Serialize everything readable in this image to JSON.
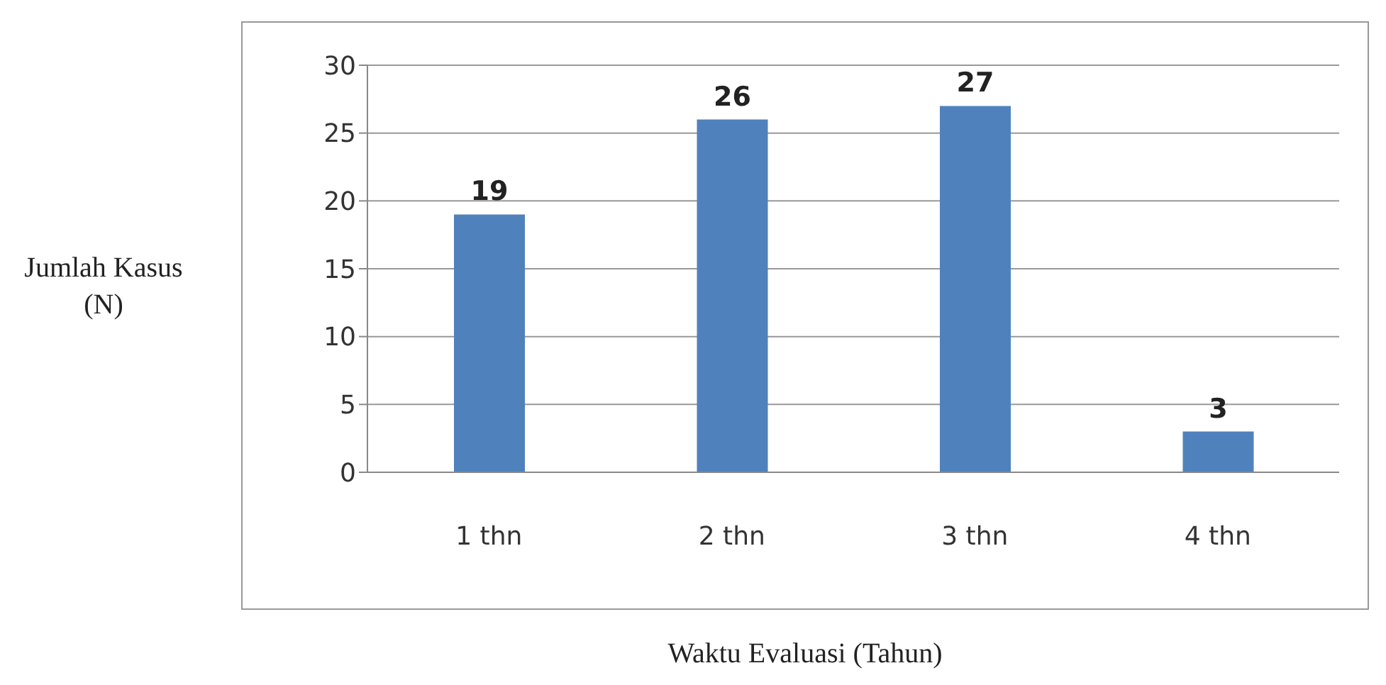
{
  "chart_data": {
    "type": "bar",
    "xlabel": "Waktu Evaluasi (Tahun)",
    "ylabel": "Jumlah Kasus (N)",
    "categories": [
      "1 thn",
      "2 thn",
      "3 thn",
      "4 thn"
    ],
    "values": [
      19,
      26,
      27,
      3
    ],
    "color": "#4f81bd",
    "ylim": [
      0,
      30
    ],
    "yticks": [
      0,
      5,
      10,
      15,
      20,
      25,
      30
    ],
    "grid": "y",
    "data_labels": true
  }
}
